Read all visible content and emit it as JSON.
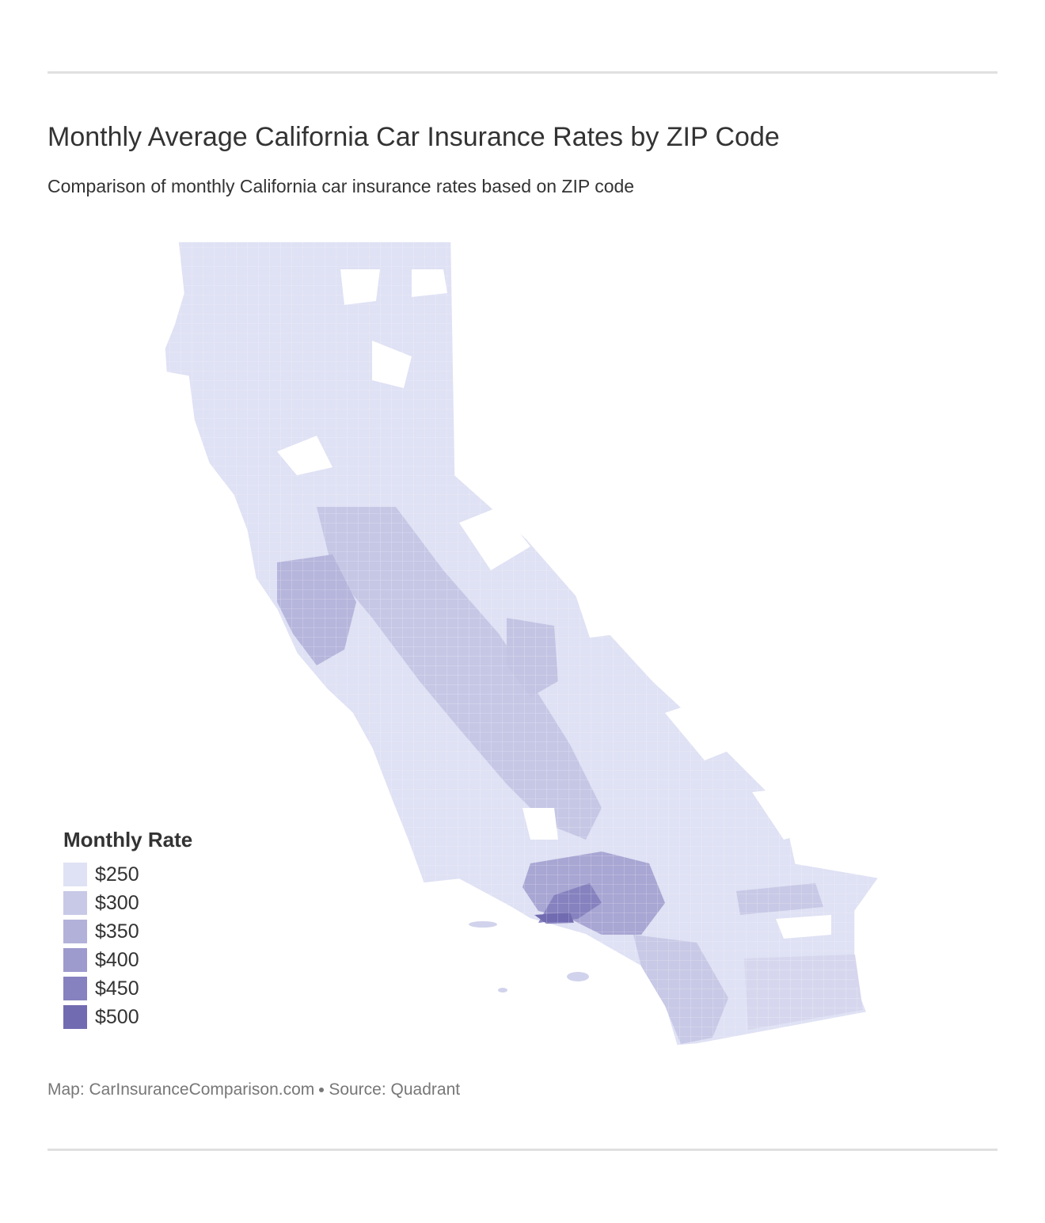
{
  "header": {
    "title": "Monthly Average California Car Insurance Rates by ZIP Code",
    "subtitle": "Comparison of monthly California car insurance rates based on ZIP code"
  },
  "map": {
    "region": "California",
    "unit": "ZIP code",
    "colors": {
      "base": "#dfe1f4",
      "low": "#d1d3ec",
      "mid": "#c3c4e3",
      "high": "#a8a6d3",
      "higher": "#8c88c3",
      "highest": "#716bb1",
      "border": "#ffffff"
    }
  },
  "legend": {
    "title": "Monthly Rate",
    "items": [
      {
        "label": "$250",
        "color": "#dfe1f4"
      },
      {
        "label": "$300",
        "color": "#c8c9e6"
      },
      {
        "label": "$350",
        "color": "#b2b1da"
      },
      {
        "label": "$400",
        "color": "#9d9ace"
      },
      {
        "label": "$450",
        "color": "#8682bf"
      },
      {
        "label": "$500",
        "color": "#716bb1"
      }
    ]
  },
  "footer": {
    "map_credit": "Map: CarInsuranceComparison.com",
    "source": "Source: Quadrant"
  }
}
